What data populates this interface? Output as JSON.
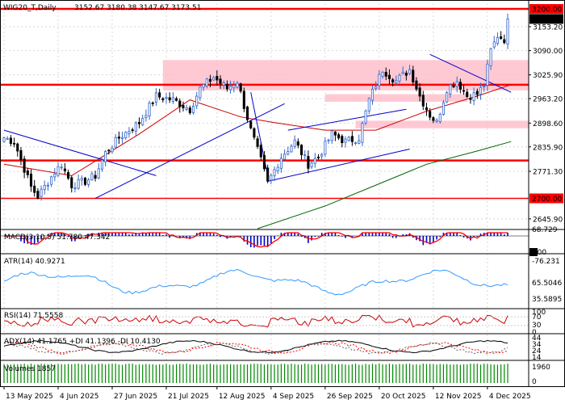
{
  "chart_header": {
    "symbol": "WIG20_T,Daily",
    "ohlc": "3152.67 3180.38 3147.67 3173.51"
  },
  "colors": {
    "bull_candle": "#3366cc",
    "bear_candle": "#000000",
    "level_line": "#ff0000",
    "zone_fill": "#ffc0cb",
    "trendline": "#0000cc",
    "ma_fast": "#cc0000",
    "ma_slow": "#006400",
    "macd_hist": "#0000cc",
    "macd_signal": "#ff0000",
    "atr": "#3399ff",
    "rsi": "#cc0000",
    "adx": "#000000",
    "di_plus": "#ff0000",
    "di_minus": "#666666",
    "volume": "#008800",
    "current_price_bg": "#000000",
    "level_label_bg": "#ff0000"
  },
  "price_axis": {
    "ticks": [
      "3200.00",
      "3153.20",
      "3090.00",
      "3025.90",
      "2963.20",
      "2898.60",
      "2835.90",
      "2771.30",
      "2700.00",
      "2645.90"
    ],
    "current": "3173.51",
    "levels": [
      "3200.00",
      "3000.00",
      "2800.00",
      "2700.00"
    ]
  },
  "time_axis": [
    "13 May 2025",
    "4 Jun 2025",
    "27 Jun 2025",
    "21 Jul 2025",
    "12 Aug 2025",
    "4 Sep 2025",
    "26 Sep 2025",
    "20 Oct 2025",
    "12 Nov 2025",
    "4 Dec 2025"
  ],
  "panels": {
    "macd": {
      "label": "MACD(3,10,5) 51.780 47.342",
      "ticks": [
        "68.729",
        "0.00",
        "-76.231"
      ]
    },
    "atr": {
      "label": "ATR(14) 40.9271",
      "ticks": [
        "65.5046",
        "35.5895"
      ]
    },
    "rsi": {
      "label": "RSI(14) 71.5558",
      "ticks": [
        "100",
        "70",
        "30",
        "0"
      ]
    },
    "adx": {
      "label": "ADX(14) 41.1765 +DI 41.1396 -DI 10.4130",
      "ticks": [
        "44",
        "34",
        "24",
        "14"
      ]
    },
    "volume": {
      "label": "Volumes 1857",
      "ticks": [
        "1960",
        "0"
      ]
    }
  },
  "chart_data": {
    "type": "candlestick",
    "title": "WIG20_T,Daily",
    "ylim": [
      2620,
      3215
    ],
    "levels": [
      3200,
      3000,
      2800,
      2700
    ],
    "zones": [
      {
        "y0": 2985,
        "y1": 3065,
        "from": "22 Jul 2025",
        "to": "end"
      },
      {
        "y0": 2955,
        "y1": 2975,
        "from": "27 Oct 2025",
        "to": "3 Dec 2025"
      },
      {
        "y0": 2885,
        "y1": 2905,
        "from": "18 Nov 2025",
        "to": "end"
      }
    ],
    "sessions": 150,
    "close_last": 3173.51,
    "anchor_closes": [
      {
        "i": 0,
        "v": 2860
      },
      {
        "i": 3,
        "v": 2850
      },
      {
        "i": 8,
        "v": 2730
      },
      {
        "i": 10,
        "v": 2705
      },
      {
        "i": 15,
        "v": 2770
      },
      {
        "i": 17,
        "v": 2790
      },
      {
        "i": 20,
        "v": 2735
      },
      {
        "i": 24,
        "v": 2745
      },
      {
        "i": 27,
        "v": 2760
      },
      {
        "i": 30,
        "v": 2820
      },
      {
        "i": 34,
        "v": 2860
      },
      {
        "i": 40,
        "v": 2900
      },
      {
        "i": 45,
        "v": 2970
      },
      {
        "i": 50,
        "v": 2960
      },
      {
        "i": 55,
        "v": 2935
      },
      {
        "i": 58,
        "v": 2990
      },
      {
        "i": 62,
        "v": 3020
      },
      {
        "i": 66,
        "v": 2990
      },
      {
        "i": 69,
        "v": 3010
      },
      {
        "i": 73,
        "v": 2880
      },
      {
        "i": 76,
        "v": 2800
      },
      {
        "i": 78,
        "v": 2740
      },
      {
        "i": 82,
        "v": 2810
      },
      {
        "i": 86,
        "v": 2850
      },
      {
        "i": 90,
        "v": 2790
      },
      {
        "i": 93,
        "v": 2810
      },
      {
        "i": 97,
        "v": 2870
      },
      {
        "i": 101,
        "v": 2850
      },
      {
        "i": 105,
        "v": 2860
      },
      {
        "i": 108,
        "v": 2960
      },
      {
        "i": 112,
        "v": 3040
      },
      {
        "i": 116,
        "v": 3010
      },
      {
        "i": 120,
        "v": 3040
      },
      {
        "i": 123,
        "v": 2970
      },
      {
        "i": 126,
        "v": 2920
      },
      {
        "i": 128,
        "v": 2900
      },
      {
        "i": 131,
        "v": 2990
      },
      {
        "i": 134,
        "v": 3010
      },
      {
        "i": 137,
        "v": 2970
      },
      {
        "i": 140,
        "v": 2975
      },
      {
        "i": 142,
        "v": 3000
      },
      {
        "i": 144,
        "v": 3090
      },
      {
        "i": 146,
        "v": 3130
      },
      {
        "i": 148,
        "v": 3120
      },
      {
        "i": 149,
        "v": 3173.51
      }
    ],
    "ma_fast": [
      [
        0,
        2790
      ],
      [
        20,
        2760
      ],
      [
        40,
        2870
      ],
      [
        55,
        2960
      ],
      [
        70,
        2915
      ],
      [
        80,
        2900
      ],
      [
        95,
        2880
      ],
      [
        110,
        2880
      ],
      [
        125,
        2930
      ],
      [
        140,
        2970
      ],
      [
        150,
        3000
      ]
    ],
    "ma_slow": [
      [
        75,
        2620
      ],
      [
        95,
        2680
      ],
      [
        110,
        2735
      ],
      [
        125,
        2790
      ],
      [
        140,
        2825
      ],
      [
        150,
        2850
      ]
    ],
    "trendlines": [
      [
        [
          0,
          2880
        ],
        [
          45,
          2760
        ]
      ],
      [
        [
          27,
          2700
        ],
        [
          83,
          2950
        ]
      ],
      [
        [
          73,
          2980
        ],
        [
          78,
          2760
        ]
      ],
      [
        [
          78,
          2745
        ],
        [
          120,
          2830
        ]
      ],
      [
        [
          84,
          2880
        ],
        [
          119,
          2935
        ]
      ],
      [
        [
          126,
          3080
        ],
        [
          150,
          2980
        ]
      ]
    ],
    "time_axis": [
      "13 May 2025",
      "4 Jun 2025",
      "27 Jun 2025",
      "21 Jul 2025",
      "12 Aug 2025",
      "4 Sep 2025",
      "26 Sep 2025",
      "20 Oct 2025",
      "12 Nov 2025",
      "4 Dec 2025"
    ],
    "macd": 51.78,
    "macd_signal": 47.342,
    "atr": 40.9271,
    "rsi": 71.5558,
    "adx": 41.1765,
    "di_plus": 41.1396,
    "di_minus": 10.413,
    "volume": 1857
  }
}
